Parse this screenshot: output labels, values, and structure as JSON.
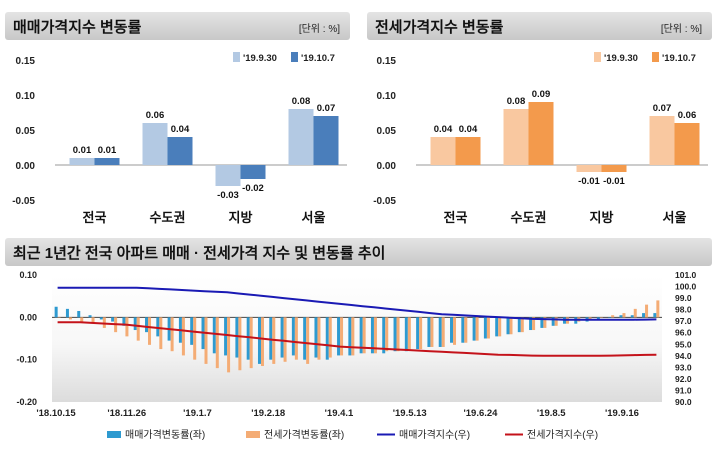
{
  "top_left": {
    "title": "매매가격지수 변동률",
    "unit": "[단위 : %]"
  },
  "top_right": {
    "title": "전세가격지수 변동률",
    "unit": "[단위 : %]"
  },
  "bottom": {
    "title": "최근 1년간 전국 아파트 매매 · 전세가격 지수 및 변동률 추이"
  },
  "colors": {
    "sale_prev": "#b3c9e3",
    "sale_curr": "#4a7ebb",
    "jeonse_prev": "#f9c8a0",
    "jeonse_curr": "#f39a4c",
    "sale_bar": "#2e9ad0",
    "jeonse_bar": "#f4ac75",
    "sale_line": "#1a1ab4",
    "jeonse_line": "#c4121a"
  },
  "chart_data": [
    {
      "type": "bar",
      "categories": [
        "전국",
        "수도권",
        "지방",
        "서울"
      ],
      "series": [
        {
          "name": "'19.9.30",
          "values": [
            0.01,
            0.06,
            -0.03,
            0.08
          ]
        },
        {
          "name": "'19.10.7",
          "values": [
            0.01,
            0.04,
            -0.02,
            0.07
          ]
        }
      ],
      "data_labels": [
        [
          "0.01",
          "0.06",
          "-0.03",
          "0.08"
        ],
        [
          "0.01",
          "0.04",
          "-0.02",
          "0.07"
        ]
      ],
      "ylim": [
        -0.05,
        0.15
      ],
      "yticks": [
        "0.15",
        "0.10",
        "0.05",
        "0.00",
        "-0.05"
      ],
      "legend": "top-right"
    },
    {
      "type": "bar",
      "categories": [
        "전국",
        "수도권",
        "지방",
        "서울"
      ],
      "series": [
        {
          "name": "'19.9.30",
          "values": [
            0.04,
            0.08,
            -0.01,
            0.07
          ]
        },
        {
          "name": "'19.10.7",
          "values": [
            0.04,
            0.09,
            -0.01,
            0.06
          ]
        }
      ],
      "data_labels": [
        [
          "0.04",
          "0.08",
          "-0.01",
          "0.07"
        ],
        [
          "0.04",
          "0.09",
          "-0.01",
          "0.06"
        ]
      ],
      "ylim": [
        -0.05,
        0.15
      ],
      "yticks": [
        "0.15",
        "0.10",
        "0.05",
        "0.00",
        "-0.05"
      ],
      "legend": "top-right"
    },
    {
      "type": "bar",
      "x_ticks": [
        "'18.10.15",
        "'18.11.26",
        "'19.1.7",
        "'19.2.18",
        "'19.4.1",
        "'19.5.13",
        "'19.6.24",
        "'19.8.5",
        "'19.9.16"
      ],
      "ylim": [
        -0.2,
        0.1
      ],
      "yticks": [
        "0.10",
        "0.00",
        "-0.10",
        "-0.20"
      ],
      "y2lim": [
        90.0,
        101.0
      ],
      "y2ticks": [
        "101.0",
        "100.0",
        "99.0",
        "98.0",
        "97.0",
        "96.0",
        "95.0",
        "94.0",
        "93.0",
        "92.0",
        "91.0",
        "90.0"
      ],
      "series": [
        {
          "name": "매매가격변동률(좌)",
          "kind": "bar",
          "values": [
            0.025,
            0.02,
            0.015,
            0.005,
            -0.005,
            -0.01,
            -0.02,
            -0.03,
            -0.035,
            -0.045,
            -0.055,
            -0.06,
            -0.065,
            -0.075,
            -0.085,
            -0.09,
            -0.095,
            -0.1,
            -0.11,
            -0.1,
            -0.095,
            -0.09,
            -0.1,
            -0.095,
            -0.1,
            -0.09,
            -0.09,
            -0.085,
            -0.085,
            -0.085,
            -0.08,
            -0.08,
            -0.075,
            -0.07,
            -0.07,
            -0.06,
            -0.06,
            -0.055,
            -0.05,
            -0.045,
            -0.04,
            -0.035,
            -0.03,
            -0.025,
            -0.02,
            -0.015,
            -0.015,
            -0.01,
            -0.005,
            0.0,
            0.005,
            0.005,
            0.01,
            0.01
          ]
        },
        {
          "name": "전세가격변동률(좌)",
          "kind": "bar",
          "values": [
            0.0,
            -0.005,
            -0.01,
            -0.015,
            -0.025,
            -0.035,
            -0.045,
            -0.055,
            -0.065,
            -0.075,
            -0.08,
            -0.09,
            -0.1,
            -0.11,
            -0.12,
            -0.13,
            -0.125,
            -0.12,
            -0.115,
            -0.11,
            -0.105,
            -0.1,
            -0.11,
            -0.1,
            -0.095,
            -0.09,
            -0.09,
            -0.085,
            -0.085,
            -0.08,
            -0.08,
            -0.075,
            -0.075,
            -0.07,
            -0.07,
            -0.065,
            -0.06,
            -0.055,
            -0.05,
            -0.045,
            -0.04,
            -0.035,
            -0.03,
            -0.025,
            -0.02,
            -0.015,
            -0.01,
            -0.005,
            0.0,
            0.005,
            0.01,
            0.02,
            0.03,
            0.04
          ]
        },
        {
          "name": "매매가격지수(우)",
          "kind": "line",
          "values": [
            99.9,
            99.9,
            99.9,
            99.9,
            99.9,
            99.9,
            99.9,
            99.9,
            99.85,
            99.8,
            99.75,
            99.7,
            99.65,
            99.6,
            99.55,
            99.5,
            99.4,
            99.3,
            99.2,
            99.1,
            99.0,
            98.9,
            98.8,
            98.7,
            98.6,
            98.5,
            98.4,
            98.3,
            98.2,
            98.1,
            98.0,
            97.9,
            97.8,
            97.7,
            97.6,
            97.55,
            97.5,
            97.45,
            97.4,
            97.35,
            97.3,
            97.25,
            97.2,
            97.18,
            97.15,
            97.13,
            97.12,
            97.12,
            97.12,
            97.12,
            97.12,
            97.13,
            97.14,
            97.15
          ]
        },
        {
          "name": "전세가격지수(우)",
          "kind": "line",
          "values": [
            96.9,
            96.9,
            96.9,
            96.85,
            96.8,
            96.75,
            96.7,
            96.6,
            96.5,
            96.4,
            96.3,
            96.2,
            96.1,
            96.0,
            95.9,
            95.8,
            95.7,
            95.6,
            95.5,
            95.4,
            95.3,
            95.2,
            95.1,
            95.0,
            94.9,
            94.8,
            94.75,
            94.7,
            94.65,
            94.6,
            94.55,
            94.5,
            94.45,
            94.4,
            94.35,
            94.3,
            94.25,
            94.2,
            94.15,
            94.1,
            94.08,
            94.05,
            94.02,
            94.0,
            94.0,
            94.0,
            94.0,
            94.0,
            94.0,
            94.02,
            94.04,
            94.06,
            94.08,
            94.1
          ]
        }
      ],
      "legend": "bottom"
    }
  ]
}
